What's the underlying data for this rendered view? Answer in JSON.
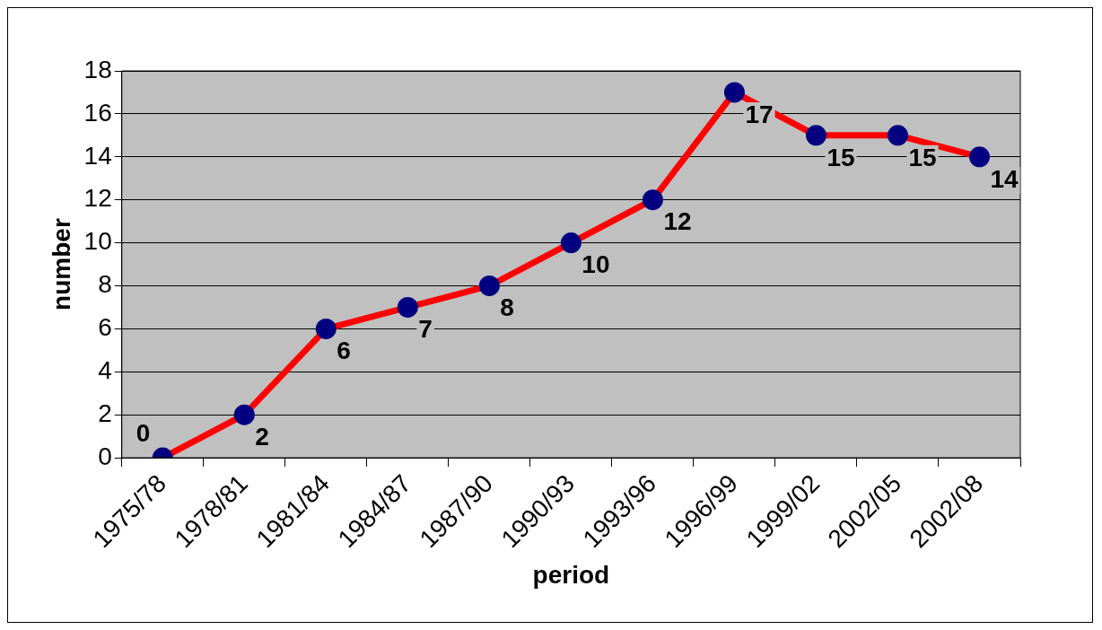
{
  "chart_data": {
    "type": "line",
    "xlabel": "period",
    "ylabel": "number",
    "categories": [
      "1975/78",
      "1978/81",
      "1981/84",
      "1984/87",
      "1987/90",
      "1990/93",
      "1993/96",
      "1996/99",
      "1999/02",
      "2002/05",
      "2002/08"
    ],
    "series": [
      {
        "color": "#ff0000",
        "values": [
          0,
          2,
          6,
          7,
          8,
          10,
          12,
          17,
          15,
          15,
          14
        ]
      }
    ],
    "ylim": [
      0,
      18
    ],
    "yticks": [
      0,
      2,
      4,
      6,
      8,
      10,
      12,
      14,
      16,
      18
    ],
    "grid": "y",
    "legend": false,
    "marker": "circle",
    "line_style": "solid",
    "data_labels": true
  }
}
